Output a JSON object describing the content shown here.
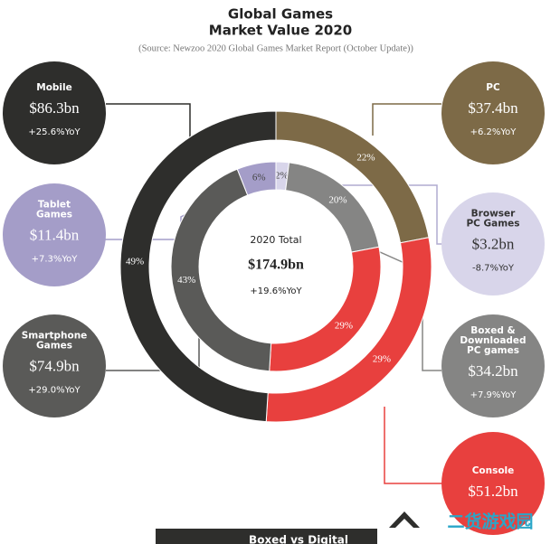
{
  "chart_data": {
    "type": "donut",
    "title": [
      "Global Games",
      "Market Value 2020"
    ],
    "subtitle": "(Source: Newzoo 2020 Global Games Market Report (October Update))",
    "center": {
      "label": "2020 Total",
      "value": "$174.9bn",
      "change": "+19.6%YoY"
    },
    "rings": [
      {
        "names": [
          "PC",
          "Console",
          "Mobile"
        ],
        "colors": [
          "#7d6a47",
          "#e8403e",
          "#2e2e2c"
        ],
        "values": [
          22,
          29,
          49
        ],
        "value_labels": [
          "22%",
          "29%",
          "49%"
        ]
      },
      {
        "names": [
          "Browser PC Games",
          "Boxed & Downloaded PC games",
          "Console",
          "Smartphone Games",
          "Tablet Games"
        ],
        "colors": [
          "#d8d5ea",
          "#858584",
          "#e8403e",
          "#5a5a58",
          "#a49dc8"
        ],
        "values": [
          2,
          20,
          29,
          43,
          6
        ],
        "value_labels": [
          "2%",
          "20%",
          "29%",
          "43%",
          "6%"
        ]
      }
    ],
    "callouts": [
      {
        "name": [
          "Mobile"
        ],
        "value": "$86.3bn",
        "change": "+25.6%YoY",
        "color": "#2e2e2c"
      },
      {
        "name": [
          "Tablet",
          "Games"
        ],
        "value": "$11.4bn",
        "change": "+7.3%YoY",
        "color": "#a49dc8"
      },
      {
        "name": [
          "Smartphone",
          "Games"
        ],
        "value": "$74.9bn",
        "change": "+29.0%YoY",
        "color": "#5a5a58"
      },
      {
        "name": [
          "PC"
        ],
        "value": "$37.4bn",
        "change": "+6.2%YoY",
        "color": "#7d6a47"
      },
      {
        "name": [
          "Browser",
          "PC Games"
        ],
        "value": "$3.2bn",
        "change": "-8.7%YoY",
        "color": "#d8d5ea"
      },
      {
        "name": [
          "Boxed &",
          "Downloaded",
          "PC games"
        ],
        "value": "$34.2bn",
        "change": "+7.9%YoY",
        "color": "#858584"
      },
      {
        "name": [
          "Console"
        ],
        "value": "$51.2bn",
        "color": "#e8403e"
      }
    ],
    "watermark": "二货游戏园",
    "footer": "Boxed vs Digital"
  }
}
